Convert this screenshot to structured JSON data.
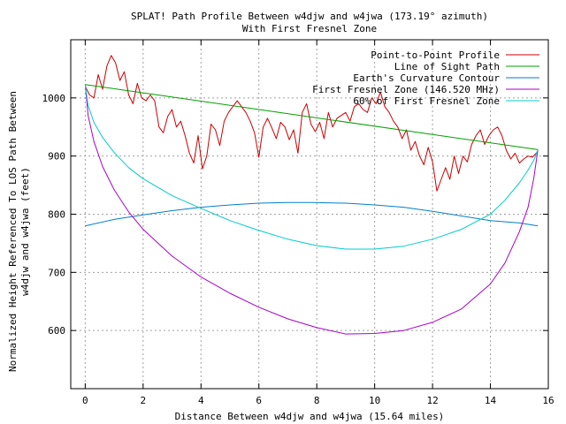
{
  "chart_data": {
    "type": "line",
    "title": "SPLAT! Path Profile Between w4djw and w4jwa (173.19° azimuth)",
    "subtitle": "With First Fresnel Zone",
    "xlabel": "Distance Between w4djw and w4jwa (15.64 miles)",
    "ylabel_line1": "Normalized Height Referenced To LOS Path Between",
    "ylabel_line2": "w4djw and w4jwa (feet)",
    "xlim": [
      -0.5,
      16
    ],
    "ylim": [
      500,
      1100
    ],
    "xticks": [
      0,
      2,
      4,
      6,
      8,
      10,
      12,
      14,
      16
    ],
    "yticks": [
      600,
      700,
      800,
      900,
      1000
    ],
    "grid": true,
    "legend_position": "top-right",
    "series": [
      {
        "name": "Point-to-Point Profile",
        "color": "#cc0000",
        "x": [
          0,
          0.15,
          0.3,
          0.45,
          0.6,
          0.75,
          0.9,
          1.05,
          1.2,
          1.35,
          1.5,
          1.65,
          1.8,
          1.95,
          2.1,
          2.25,
          2.4,
          2.55,
          2.7,
          2.85,
          3.0,
          3.15,
          3.3,
          3.45,
          3.6,
          3.75,
          3.9,
          4.05,
          4.2,
          4.35,
          4.5,
          4.65,
          4.8,
          4.95,
          5.1,
          5.25,
          5.4,
          5.55,
          5.7,
          5.85,
          6.0,
          6.15,
          6.3,
          6.45,
          6.6,
          6.75,
          6.9,
          7.05,
          7.2,
          7.35,
          7.5,
          7.65,
          7.8,
          7.95,
          8.1,
          8.25,
          8.4,
          8.55,
          8.7,
          8.85,
          9.0,
          9.15,
          9.3,
          9.45,
          9.6,
          9.75,
          9.9,
          10.05,
          10.2,
          10.35,
          10.5,
          10.65,
          10.8,
          10.95,
          11.1,
          11.25,
          11.4,
          11.55,
          11.7,
          11.85,
          12.0,
          12.15,
          12.3,
          12.45,
          12.6,
          12.75,
          12.9,
          13.05,
          13.2,
          13.35,
          13.5,
          13.65,
          13.8,
          13.95,
          14.1,
          14.25,
          14.4,
          14.55,
          14.7,
          14.85,
          15.0,
          15.15,
          15.3,
          15.45,
          15.64
        ],
        "y": [
          1020,
          1005,
          1000,
          1040,
          1015,
          1055,
          1073,
          1060,
          1030,
          1045,
          1005,
          990,
          1025,
          1000,
          995,
          1005,
          995,
          950,
          940,
          968,
          980,
          950,
          960,
          935,
          905,
          888,
          935,
          878,
          900,
          955,
          945,
          918,
          960,
          975,
          985,
          995,
          985,
          975,
          960,
          940,
          898,
          950,
          965,
          948,
          930,
          958,
          950,
          928,
          945,
          905,
          975,
          990,
          955,
          942,
          958,
          930,
          975,
          950,
          965,
          970,
          975,
          960,
          985,
          990,
          980,
          975,
          1000,
          990,
          1010,
          985,
          975,
          960,
          950,
          930,
          945,
          910,
          925,
          900,
          885,
          915,
          890,
          840,
          860,
          880,
          860,
          900,
          870,
          900,
          890,
          920,
          935,
          945,
          920,
          935,
          945,
          950,
          935,
          910,
          895,
          905,
          888,
          895,
          900,
          898,
          908
        ]
      },
      {
        "name": "Line of Sight Path",
        "color": "#00a000",
        "x": [
          0,
          15.64
        ],
        "y": [
          1023,
          911
        ]
      },
      {
        "name": "Earth's Curvature Contour",
        "color": "#0080cc",
        "x": [
          0,
          1,
          2,
          3,
          4,
          5,
          6,
          7,
          7.82,
          9,
          10,
          11,
          12,
          13,
          14,
          15,
          15.64
        ],
        "y": [
          780,
          791,
          799,
          806,
          812,
          816,
          819,
          820,
          820,
          819,
          816,
          812,
          805,
          797,
          789,
          785,
          780
        ]
      },
      {
        "name": "First Fresnel Zone (146.520 MHz)",
        "color": "#aa00cc",
        "x": [
          0,
          0.1,
          0.3,
          0.6,
          1,
          1.5,
          2,
          3,
          4,
          5,
          6,
          7,
          8,
          9,
          10,
          11,
          12,
          13,
          14,
          14.5,
          15,
          15.3,
          15.5,
          15.64
        ],
        "y": [
          1023,
          970,
          925,
          882,
          842,
          804,
          774,
          728,
          692,
          664,
          640,
          620,
          605,
          594,
          595,
          600,
          614,
          637,
          680,
          716,
          770,
          812,
          862,
          911
        ]
      },
      {
        "name": "60% of First Fresnel Zone",
        "color": "#00cccc",
        "x": [
          0,
          0.1,
          0.3,
          0.6,
          1,
          1.5,
          2,
          3,
          4,
          5,
          6,
          7,
          8,
          9,
          10,
          11,
          12,
          13,
          14,
          14.5,
          15,
          15.3,
          15.5,
          15.64
        ],
        "y": [
          1023,
          987,
          958,
          932,
          906,
          880,
          861,
          832,
          810,
          789,
          772,
          757,
          746,
          740,
          740,
          745,
          757,
          774,
          800,
          824,
          854,
          876,
          893,
          911
        ]
      }
    ]
  }
}
